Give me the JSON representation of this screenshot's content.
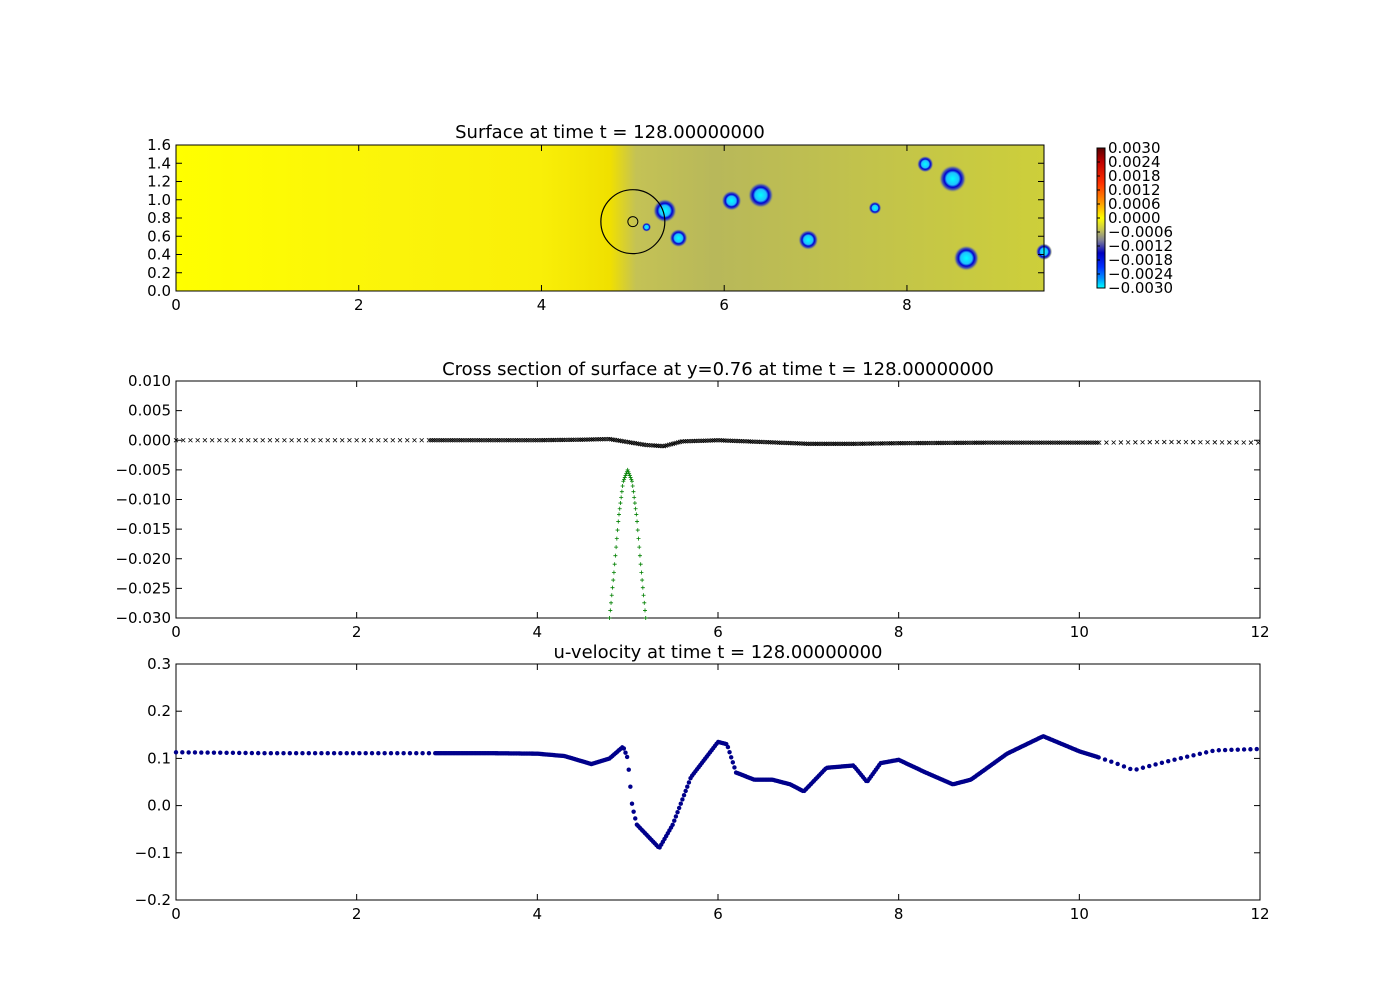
{
  "chart_data": [
    {
      "type": "heatmap",
      "title": "Surface at time t =   128.00000000",
      "xlim": [
        0,
        9.5
      ],
      "ylim": [
        0,
        1.6
      ],
      "xticks": [
        "0",
        "2",
        "4",
        "6",
        "8"
      ],
      "yticks": [
        "0.0",
        "0.2",
        "0.4",
        "0.6",
        "0.8",
        "1.0",
        "1.2",
        "1.4",
        "1.6"
      ],
      "colorbar": {
        "min": -0.003,
        "max": 0.003,
        "ticks": [
          "0.0030",
          "0.0024",
          "0.0018",
          "0.0012",
          "0.0006",
          "0.0000",
          "−0.0006",
          "−0.0012",
          "−0.0018",
          "−0.0024",
          "−0.0030"
        ]
      },
      "circle": {
        "x": 5.0,
        "y": 0.76,
        "r": 0.35
      },
      "depressions": [
        {
          "x": 5.35,
          "y": 0.88,
          "r": 0.13
        },
        {
          "x": 5.5,
          "y": 0.58,
          "r": 0.1
        },
        {
          "x": 5.15,
          "y": 0.7,
          "r": 0.05
        },
        {
          "x": 6.08,
          "y": 0.99,
          "r": 0.11
        },
        {
          "x": 6.4,
          "y": 1.05,
          "r": 0.14
        },
        {
          "x": 6.92,
          "y": 0.56,
          "r": 0.11
        },
        {
          "x": 7.65,
          "y": 0.91,
          "r": 0.07
        },
        {
          "x": 8.2,
          "y": 1.39,
          "r": 0.09
        },
        {
          "x": 8.5,
          "y": 1.23,
          "r": 0.15
        },
        {
          "x": 8.65,
          "y": 0.36,
          "r": 0.14
        },
        {
          "x": 9.5,
          "y": 0.43,
          "r": 0.09
        }
      ],
      "grid": false
    },
    {
      "type": "scatter",
      "title": "Cross section of surface at y=0.76 at time t =   128.00000000",
      "xlim": [
        0,
        12
      ],
      "ylim": [
        -0.03,
        0.01
      ],
      "xticks": [
        "0",
        "2",
        "4",
        "6",
        "8",
        "10",
        "12"
      ],
      "yticks": [
        "0.010",
        "0.005",
        "0.000",
        "−0.005",
        "−0.010",
        "−0.015",
        "−0.020",
        "−0.025",
        "−0.030"
      ],
      "series": [
        {
          "marker": "x",
          "color": "#000000",
          "x": [
            0,
            1,
            2,
            2.8,
            3.5,
            4.0,
            4.5,
            4.8,
            5.0,
            5.2,
            5.4,
            5.6,
            6.0,
            6.5,
            7.0,
            7.5,
            8.0,
            9.0,
            10.0,
            10.2,
            11.0,
            12.0
          ],
          "y": [
            0.0,
            0.0,
            0.0,
            0.0,
            0.0,
            0.0,
            0.0001,
            0.0002,
            -0.0003,
            -0.0008,
            -0.001,
            -0.0002,
            0.0,
            -0.0003,
            -0.0006,
            -0.0006,
            -0.0005,
            -0.0004,
            -0.0004,
            -0.0004,
            -0.0003,
            -0.0004
          ]
        },
        {
          "marker": "+",
          "color": "#008000",
          "x": [
            4.8,
            4.85,
            4.9,
            4.95,
            5.0,
            5.05,
            5.1,
            5.15,
            5.2
          ],
          "y": [
            -0.03,
            -0.022,
            -0.013,
            -0.007,
            -0.005,
            -0.007,
            -0.013,
            -0.022,
            -0.03
          ]
        }
      ],
      "grid": false
    },
    {
      "type": "scatter",
      "title": "u-velocity at time t =   128.00000000",
      "xlim": [
        0,
        12
      ],
      "ylim": [
        -0.2,
        0.3
      ],
      "xticks": [
        "0",
        "2",
        "4",
        "6",
        "8",
        "10",
        "12"
      ],
      "yticks": [
        "0.3",
        "0.2",
        "0.1",
        "0.0",
        "−0.1",
        "−0.2"
      ],
      "series": [
        {
          "marker": "o",
          "color": "#00008b",
          "x": [
            0,
            1,
            2,
            2.8,
            3.5,
            4.0,
            4.3,
            4.6,
            4.8,
            4.95,
            5.0,
            5.05,
            5.1,
            5.2,
            5.3,
            5.35,
            5.5,
            5.7,
            6.0,
            6.1,
            6.2,
            6.4,
            6.6,
            6.8,
            6.95,
            7.2,
            7.5,
            7.65,
            7.8,
            8.0,
            8.3,
            8.6,
            8.8,
            9.2,
            9.6,
            10.0,
            10.2,
            10.4,
            10.6,
            11.0,
            11.5,
            12.0
          ],
          "y": [
            0.113,
            0.111,
            0.111,
            0.111,
            0.111,
            0.11,
            0.105,
            0.088,
            0.1,
            0.125,
            0.1,
            0.0,
            -0.04,
            -0.06,
            -0.08,
            -0.09,
            -0.04,
            0.06,
            0.135,
            0.13,
            0.07,
            0.055,
            0.055,
            0.045,
            0.03,
            0.08,
            0.085,
            0.05,
            0.09,
            0.097,
            0.07,
            0.045,
            0.055,
            0.11,
            0.147,
            0.115,
            0.103,
            0.09,
            0.075,
            0.095,
            0.117,
            0.12
          ]
        }
      ],
      "grid": false
    }
  ]
}
